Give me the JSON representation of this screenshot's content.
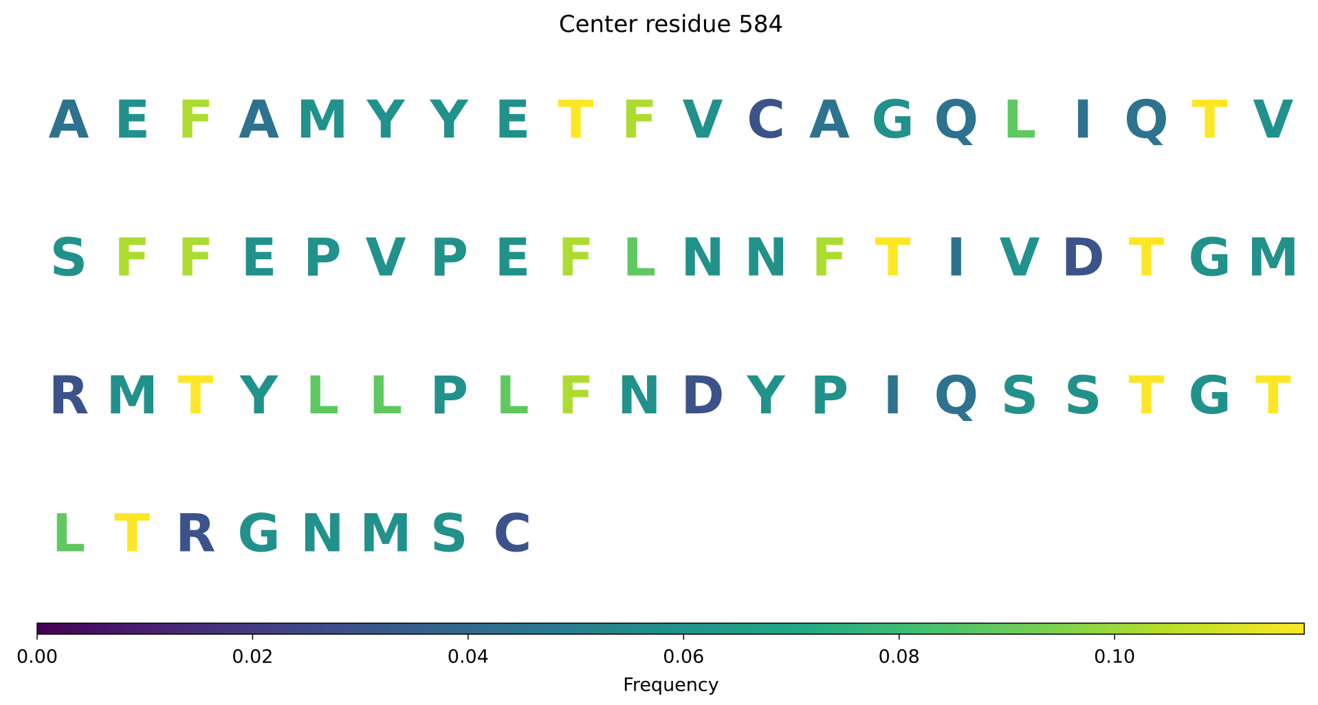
{
  "chart_data": {
    "type": "letter-grid",
    "title": "Center residue 584",
    "residues": [
      "A",
      "E",
      "F",
      "A",
      "M",
      "Y",
      "Y",
      "E",
      "T",
      "F",
      "V",
      "C",
      "A",
      "G",
      "Q",
      "L",
      "I",
      "Q",
      "T",
      "V",
      "S",
      "F",
      "F",
      "E",
      "P",
      "V",
      "P",
      "E",
      "F",
      "L",
      "N",
      "N",
      "F",
      "T",
      "I",
      "V",
      "D",
      "T",
      "G",
      "M",
      "R",
      "M",
      "T",
      "Y",
      "L",
      "L",
      "P",
      "L",
      "F",
      "N",
      "D",
      "Y",
      "P",
      "I",
      "Q",
      "S",
      "S",
      "T",
      "G",
      "T",
      "L",
      "T",
      "R",
      "G",
      "N",
      "M",
      "S",
      "C"
    ],
    "values": [
      0.0441,
      0.0588,
      0.1029,
      0.0441,
      0.0588,
      0.0588,
      0.0588,
      0.0588,
      0.1176,
      0.1029,
      0.0588,
      0.0294,
      0.0441,
      0.0588,
      0.0441,
      0.0882,
      0.0441,
      0.0441,
      0.1176,
      0.0588,
      0.0588,
      0.1029,
      0.1029,
      0.0588,
      0.0588,
      0.0588,
      0.0588,
      0.0588,
      0.1029,
      0.0882,
      0.0588,
      0.0588,
      0.1029,
      0.1176,
      0.0441,
      0.0588,
      0.0294,
      0.1176,
      0.0588,
      0.0588,
      0.0294,
      0.0588,
      0.1176,
      0.0588,
      0.0882,
      0.0882,
      0.0588,
      0.0882,
      0.1029,
      0.0588,
      0.0294,
      0.0588,
      0.0588,
      0.0441,
      0.0441,
      0.0588,
      0.0588,
      0.1176,
      0.0588,
      0.1176,
      0.0882,
      0.1176,
      0.0294,
      0.0588,
      0.0588,
      0.0588,
      0.0588,
      0.0294
    ],
    "colormap": "viridis",
    "colorbar_label": "Frequency",
    "clim": [
      0,
      0.1176
    ],
    "cticks": [
      {
        "value": 0,
        "label": "0.00"
      },
      {
        "value": 0.02,
        "label": "0.02"
      },
      {
        "value": 0.04,
        "label": "0.04"
      },
      {
        "value": 0.06,
        "label": "0.06"
      },
      {
        "value": 0.08,
        "label": "0.08"
      },
      {
        "value": 0.1,
        "label": "0.10"
      }
    ]
  }
}
